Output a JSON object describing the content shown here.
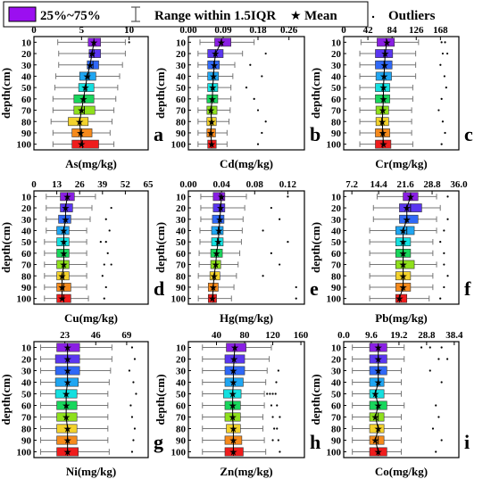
{
  "legend": {
    "box_label": "25%~75%",
    "range_label": "Range within 1.5IQR",
    "mean_label": "Mean",
    "outliers_label": "Outliers",
    "mean_symbol": "★",
    "range_symbol": "⌶",
    "outlier_symbol": "·"
  },
  "depth_colors": [
    "#8a1fe3",
    "#5a36f0",
    "#2f68f6",
    "#1fa6f2",
    "#14e0e0",
    "#18d65c",
    "#8fe01c",
    "#f3d22b",
    "#f58a1c",
    "#ef1c1c"
  ],
  "chart_data": [
    {
      "panel": "a",
      "type": "boxplot",
      "xlabel": "As(mg/kg)",
      "ylabel": "depth(cm)",
      "xlim": [
        0,
        12
      ],
      "xticks": [
        0,
        5,
        10
      ],
      "categories": [
        "10",
        "20",
        "30",
        "40",
        "50",
        "60",
        "70",
        "80",
        "90",
        "100"
      ],
      "q1": [
        5.7,
        5.8,
        5.6,
        4.8,
        4.7,
        4.2,
        4.2,
        3.6,
        4.0,
        4.0
      ],
      "q3": [
        7.0,
        7.0,
        6.8,
        6.5,
        6.3,
        6.3,
        6.4,
        5.7,
        6.1,
        6.8
      ],
      "median": [
        6.3,
        6.3,
        6.2,
        5.8,
        5.5,
        5.3,
        5.3,
        4.8,
        5.0,
        5.1
      ],
      "mean": [
        6.3,
        6.1,
        5.9,
        5.6,
        5.4,
        5.2,
        5.0,
        4.8,
        4.9,
        5.0
      ],
      "wlow": [
        2.5,
        2.6,
        2.6,
        2.3,
        2.2,
        2.0,
        2.0,
        1.8,
        2.0,
        2.0
      ],
      "whigh": [
        9.6,
        9.6,
        9.3,
        9.0,
        8.8,
        8.6,
        8.4,
        8.2,
        8.0,
        8.4
      ],
      "outliers": [
        [
          0,
          10.0
        ]
      ]
    },
    {
      "panel": "b",
      "type": "boxplot",
      "xlabel": "Cd(mg/kg)",
      "ylabel": "depth(cm)",
      "xlim": [
        0,
        0.3
      ],
      "xticks": [
        0.0,
        0.09,
        0.18,
        0.26
      ],
      "categories": [
        "10",
        "20",
        "30",
        "40",
        "50",
        "60",
        "70",
        "80",
        "90",
        "100"
      ],
      "q1": [
        0.068,
        0.05,
        0.05,
        0.05,
        0.05,
        0.048,
        0.048,
        0.048,
        0.048,
        0.05
      ],
      "q3": [
        0.11,
        0.09,
        0.08,
        0.078,
        0.076,
        0.076,
        0.074,
        0.072,
        0.07,
        0.072
      ],
      "median": [
        0.086,
        0.07,
        0.066,
        0.064,
        0.062,
        0.062,
        0.06,
        0.06,
        0.058,
        0.06
      ],
      "mean": [
        0.085,
        0.07,
        0.067,
        0.065,
        0.063,
        0.062,
        0.058,
        0.06,
        0.058,
        0.06
      ],
      "wlow": [
        0.03,
        0.025,
        0.025,
        0.025,
        0.025,
        0.025,
        0.025,
        0.025,
        0.025,
        0.025
      ],
      "whigh": [
        0.17,
        0.14,
        0.12,
        0.115,
        0.11,
        0.11,
        0.108,
        0.105,
        0.1,
        0.1
      ],
      "outliers": [
        [
          1,
          0.2
        ],
        [
          2,
          0.16
        ],
        [
          3,
          0.19
        ],
        [
          4,
          0.15
        ],
        [
          5,
          0.17
        ],
        [
          6,
          0.18
        ],
        [
          7,
          0.2
        ],
        [
          8,
          0.19
        ],
        [
          9,
          0.18
        ]
      ]
    },
    {
      "panel": "c",
      "type": "boxplot",
      "xlabel": "Cr(mg/kg)",
      "ylabel": "depth(cm)",
      "xlim": [
        0,
        200
      ],
      "xticks": [
        0,
        42,
        84,
        126,
        168
      ],
      "categories": [
        "10",
        "20",
        "30",
        "40",
        "50",
        "60",
        "70",
        "80",
        "90",
        "100"
      ],
      "q1": [
        58,
        55,
        55,
        56,
        55,
        55,
        56,
        56,
        55,
        55
      ],
      "q3": [
        88,
        85,
        84,
        83,
        80,
        80,
        78,
        78,
        80,
        82
      ],
      "median": [
        74,
        71,
        70,
        70,
        68,
        68,
        67,
        66,
        67,
        68
      ],
      "mean": [
        75,
        72,
        71,
        70,
        69,
        69,
        68,
        67,
        68,
        69
      ],
      "wlow": [
        30,
        28,
        28,
        28,
        28,
        28,
        28,
        28,
        28,
        28
      ],
      "whigh": [
        130,
        125,
        125,
        125,
        120,
        120,
        118,
        118,
        118,
        120
      ],
      "outliers": [
        [
          0,
          170
        ],
        [
          0,
          176
        ],
        [
          1,
          172
        ],
        [
          1,
          180
        ],
        [
          2,
          168
        ],
        [
          3,
          175
        ],
        [
          4,
          178
        ],
        [
          5,
          170
        ],
        [
          6,
          165
        ],
        [
          7,
          172
        ],
        [
          8,
          176
        ],
        [
          9,
          170
        ]
      ]
    },
    {
      "panel": "d",
      "type": "boxplot",
      "xlabel": "Cu(mg/kg)",
      "ylabel": "depth(cm)",
      "xlim": [
        0,
        65
      ],
      "xticks": [
        0,
        13,
        26,
        39,
        52,
        65
      ],
      "categories": [
        "10",
        "20",
        "30",
        "40",
        "50",
        "60",
        "70",
        "80",
        "90",
        "100"
      ],
      "q1": [
        15,
        15,
        14,
        13,
        13,
        13,
        13,
        13,
        13,
        13
      ],
      "q3": [
        23,
        22,
        21,
        20,
        20,
        20,
        20,
        20,
        21,
        21
      ],
      "median": [
        19,
        18,
        18,
        17,
        17,
        17,
        17,
        17,
        17,
        17
      ],
      "mean": [
        19,
        18,
        18,
        17,
        17,
        17,
        17,
        16,
        16,
        16
      ],
      "wlow": [
        7,
        7,
        7,
        7,
        6,
        6,
        6,
        6,
        6,
        6
      ],
      "whigh": [
        35,
        33,
        32,
        30,
        30,
        30,
        30,
        30,
        30,
        31
      ],
      "outliers": [
        [
          1,
          44
        ],
        [
          2,
          41
        ],
        [
          3,
          43
        ],
        [
          4,
          38
        ],
        [
          4,
          41
        ],
        [
          5,
          42
        ],
        [
          6,
          40
        ],
        [
          6,
          44
        ],
        [
          7,
          39
        ],
        [
          8,
          41
        ],
        [
          9,
          40
        ]
      ]
    },
    {
      "panel": "e",
      "type": "boxplot",
      "xlabel": "Hg(mg/kg)",
      "ylabel": "depth(cm)",
      "xlim": [
        0,
        0.14
      ],
      "xticks": [
        0.0,
        0.04,
        0.08,
        0.12
      ],
      "categories": [
        "10",
        "20",
        "30",
        "40",
        "50",
        "60",
        "70",
        "80",
        "90",
        "100"
      ],
      "q1": [
        0.03,
        0.03,
        0.029,
        0.028,
        0.028,
        0.027,
        0.027,
        0.026,
        0.024,
        0.024
      ],
      "q3": [
        0.044,
        0.044,
        0.043,
        0.042,
        0.042,
        0.041,
        0.039,
        0.038,
        0.036,
        0.034
      ],
      "median": [
        0.038,
        0.038,
        0.037,
        0.036,
        0.035,
        0.034,
        0.033,
        0.032,
        0.03,
        0.03
      ],
      "mean": [
        0.04,
        0.039,
        0.038,
        0.037,
        0.036,
        0.034,
        0.033,
        0.031,
        0.03,
        0.029
      ],
      "wlow": [
        0.015,
        0.015,
        0.015,
        0.014,
        0.014,
        0.013,
        0.013,
        0.012,
        0.012,
        0.012
      ],
      "whigh": [
        0.07,
        0.068,
        0.066,
        0.065,
        0.064,
        0.062,
        0.06,
        0.058,
        0.055,
        0.052
      ],
      "outliers": [
        [
          0,
          0.12
        ],
        [
          1,
          0.1
        ],
        [
          2,
          0.11
        ],
        [
          3,
          0.09
        ],
        [
          4,
          0.12
        ],
        [
          5,
          0.1
        ],
        [
          6,
          0.11
        ],
        [
          7,
          0.09
        ],
        [
          8,
          0.13
        ],
        [
          9,
          0.13
        ]
      ]
    },
    {
      "panel": "f",
      "type": "boxplot",
      "xlabel": "Pb(mg/kg)",
      "ylabel": "depth(cm)",
      "xlim": [
        5,
        36
      ],
      "xticks": [
        7.2,
        14.4,
        21.6,
        28.8,
        36.0
      ],
      "categories": [
        "10",
        "20",
        "30",
        "40",
        "50",
        "60",
        "70",
        "80",
        "90",
        "100"
      ],
      "q1": [
        21,
        20,
        20,
        19,
        19,
        19,
        19,
        19,
        19,
        19
      ],
      "q3": [
        25,
        26,
        25,
        24,
        23,
        23,
        24,
        23,
        23,
        22
      ],
      "median": [
        23,
        23,
        22,
        22,
        21,
        21,
        21,
        21,
        21,
        20
      ],
      "mean": [
        23,
        22,
        22,
        21,
        21,
        21,
        21,
        21,
        21,
        20
      ],
      "wlow": [
        14,
        13,
        13,
        12,
        12,
        12,
        12,
        12,
        12,
        12
      ],
      "whigh": [
        30,
        31,
        30,
        30,
        29,
        29,
        30,
        29,
        29,
        28
      ],
      "outliers": [
        [
          0,
          33
        ],
        [
          2,
          33
        ],
        [
          3,
          32
        ],
        [
          4,
          31
        ],
        [
          5,
          32
        ],
        [
          6,
          32
        ],
        [
          7,
          33
        ],
        [
          8,
          32
        ],
        [
          9,
          31
        ]
      ]
    },
    {
      "panel": "g",
      "type": "boxplot",
      "xlabel": "Ni(mg/kg)",
      "ylabel": "depth(cm)",
      "xlim": [
        0,
        85
      ],
      "xticks": [
        23,
        46,
        69
      ],
      "categories": [
        "10",
        "20",
        "30",
        "40",
        "50",
        "60",
        "70",
        "80",
        "90",
        "100"
      ],
      "q1": [
        17,
        16,
        16,
        16,
        16,
        17,
        17,
        17,
        17,
        17
      ],
      "q3": [
        34,
        34,
        34,
        33,
        32,
        32,
        32,
        32,
        32,
        33
      ],
      "median": [
        25,
        25,
        25,
        25,
        24,
        24,
        24,
        25,
        25,
        25
      ],
      "mean": [
        25,
        25,
        25,
        25,
        24,
        24,
        24,
        25,
        25,
        25
      ],
      "wlow": [
        5,
        5,
        5,
        5,
        5,
        5,
        5,
        5,
        5,
        5
      ],
      "whigh": [
        58,
        58,
        57,
        56,
        55,
        55,
        55,
        55,
        55,
        56
      ],
      "outliers": [
        [
          0,
          73
        ],
        [
          1,
          75
        ],
        [
          2,
          71
        ],
        [
          3,
          74
        ],
        [
          4,
          76
        ],
        [
          5,
          72
        ],
        [
          6,
          73
        ],
        [
          7,
          75
        ],
        [
          8,
          74
        ],
        [
          9,
          73
        ]
      ]
    },
    {
      "panel": "h",
      "type": "boxplot",
      "xlabel": "Zn(mg/kg)",
      "ylabel": "depth(cm)",
      "xlim": [
        0,
        165
      ],
      "xticks": [
        40,
        80,
        120,
        160
      ],
      "categories": [
        "10",
        "20",
        "30",
        "40",
        "50",
        "60",
        "70",
        "80",
        "90",
        "100"
      ],
      "q1": [
        54,
        52,
        52,
        52,
        50,
        52,
        52,
        54,
        52,
        52
      ],
      "q3": [
        82,
        80,
        80,
        78,
        75,
        74,
        74,
        74,
        76,
        78
      ],
      "median": [
        66,
        65,
        64,
        64,
        63,
        63,
        63,
        64,
        64,
        64
      ],
      "mean": [
        66,
        65,
        64,
        64,
        63,
        63,
        63,
        64,
        64,
        64
      ],
      "wlow": [
        20,
        20,
        20,
        20,
        20,
        20,
        20,
        20,
        20,
        20
      ],
      "whigh": [
        118,
        115,
        112,
        110,
        108,
        108,
        106,
        106,
        108,
        110
      ],
      "outliers": [
        [
          2,
          128
        ],
        [
          3,
          125
        ],
        [
          4,
          112
        ],
        [
          4,
          116
        ],
        [
          4,
          120
        ],
        [
          4,
          124
        ],
        [
          5,
          118
        ],
        [
          5,
          126
        ],
        [
          6,
          120
        ],
        [
          6,
          130
        ],
        [
          7,
          122
        ],
        [
          7,
          126
        ],
        [
          8,
          120
        ],
        [
          8,
          128
        ],
        [
          9,
          130
        ]
      ]
    },
    {
      "panel": "i",
      "type": "boxplot",
      "xlabel": "Co(mg/kg)",
      "ylabel": "depth(cm)",
      "xlim": [
        0,
        40
      ],
      "xticks": [
        0.0,
        9.6,
        19.2,
        28.8,
        38.4
      ],
      "categories": [
        "10",
        "20",
        "30",
        "40",
        "50",
        "60",
        "70",
        "80",
        "90",
        "100"
      ],
      "q1": [
        9,
        9,
        9,
        9,
        9,
        9,
        9,
        9,
        9,
        9
      ],
      "q3": [
        15,
        15,
        15,
        14,
        14,
        15,
        14,
        14,
        14,
        15
      ],
      "median": [
        12,
        12,
        12,
        12,
        11,
        12,
        12,
        12,
        12,
        12
      ],
      "mean": [
        12,
        12,
        12,
        12,
        11,
        12,
        11,
        12,
        11,
        12
      ],
      "wlow": [
        3,
        3,
        3,
        3,
        3,
        3,
        3,
        3,
        3,
        3
      ],
      "whigh": [
        21,
        21,
        20,
        20,
        20,
        21,
        20,
        20,
        20,
        20
      ],
      "outliers": [
        [
          0,
          27
        ],
        [
          0,
          30
        ],
        [
          0,
          34
        ],
        [
          1,
          33
        ],
        [
          1,
          36
        ],
        [
          2,
          30
        ],
        [
          3,
          34
        ],
        [
          5,
          32
        ],
        [
          6,
          33
        ],
        [
          7,
          31
        ],
        [
          8,
          34
        ],
        [
          9,
          32
        ]
      ]
    }
  ]
}
